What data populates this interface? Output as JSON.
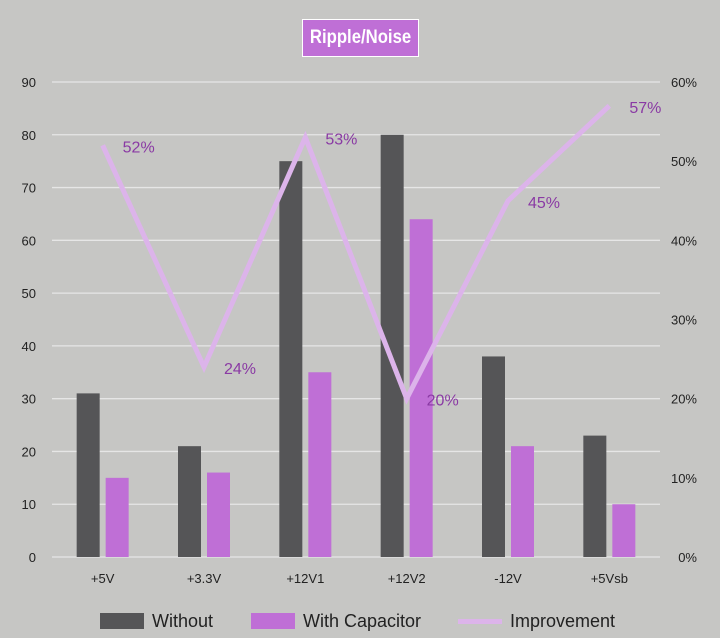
{
  "title": "Ripple/Noise",
  "colors": {
    "background": "#c6c6c4",
    "without": "#555557",
    "with_capacitor": "#bf6fd6",
    "improvement": "#dcb4ea",
    "improvement_label": "#8a3aa4",
    "grid": "#e6e6e6"
  },
  "legend": {
    "without": "Without",
    "with_capacitor": "With Capacitor",
    "improvement": "Improvement"
  },
  "chart_data": {
    "type": "bar",
    "title": "Ripple/Noise",
    "categories": [
      "+5V",
      "+3.3V",
      "+12V1",
      "+12V2",
      "-12V",
      "+5Vsb"
    ],
    "series": [
      {
        "name": "Without",
        "type": "bar",
        "axis": "left",
        "values": [
          31,
          21,
          75,
          80,
          38,
          23
        ]
      },
      {
        "name": "With Capacitor",
        "type": "bar",
        "axis": "left",
        "values": [
          15,
          16,
          35,
          64,
          21,
          10
        ]
      },
      {
        "name": "Improvement",
        "type": "line",
        "axis": "right",
        "values": [
          52,
          24,
          53,
          20,
          45,
          57
        ],
        "labels": [
          "52%",
          "24%",
          "53%",
          "20%",
          "45%",
          "57%"
        ]
      }
    ],
    "y_left": {
      "min": 0,
      "max": 90,
      "step": 10,
      "ticks": [
        "0",
        "10",
        "20",
        "30",
        "40",
        "50",
        "60",
        "70",
        "80",
        "90"
      ]
    },
    "y_right": {
      "min": 0,
      "max": 60,
      "step": 10,
      "ticks": [
        "0%",
        "10%",
        "20%",
        "30%",
        "40%",
        "50%",
        "60%"
      ]
    },
    "grid": true,
    "legend_position": "bottom"
  }
}
